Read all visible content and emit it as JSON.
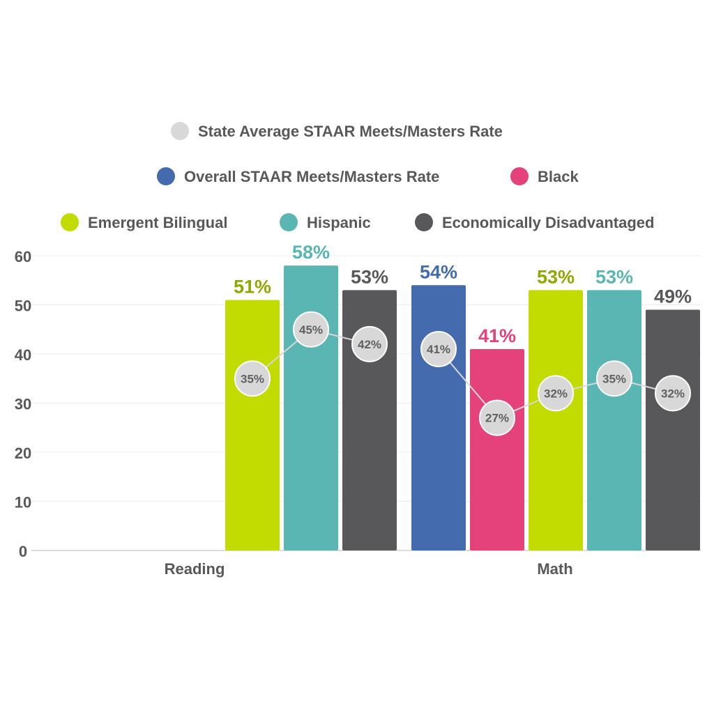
{
  "chart_data": {
    "type": "bar",
    "categories": [
      "Reading",
      "Math"
    ],
    "ylim": [
      0,
      60
    ],
    "yticks": [
      0,
      10,
      20,
      30,
      40,
      50,
      60
    ],
    "grid": true,
    "legend_position": "top",
    "series": [
      {
        "name": "Overall STAAR Meets/Masters Rate",
        "color": "#436bad",
        "values": [
          null,
          54
        ]
      },
      {
        "name": "Black",
        "color": "#e5417a",
        "values": [
          null,
          41
        ]
      },
      {
        "name": "Emergent Bilingual",
        "color": "#c2db00",
        "label_color": "#8fa800",
        "values": [
          51,
          53
        ]
      },
      {
        "name": "Hispanic",
        "color": "#59b6b2",
        "values": [
          58,
          53
        ]
      },
      {
        "name": "Economically Disadvantaged",
        "color": "#58585a",
        "values": [
          53,
          49
        ]
      }
    ],
    "state_average": {
      "name": "State Average STAAR Meets/Masters Rate",
      "color": "#d8d8d8",
      "values": [
        [
          null,
          null,
          35,
          45,
          42
        ],
        [
          41,
          27,
          32,
          35,
          32
        ]
      ]
    },
    "value_suffix": "%",
    "axis_text_color": "#58585a"
  }
}
